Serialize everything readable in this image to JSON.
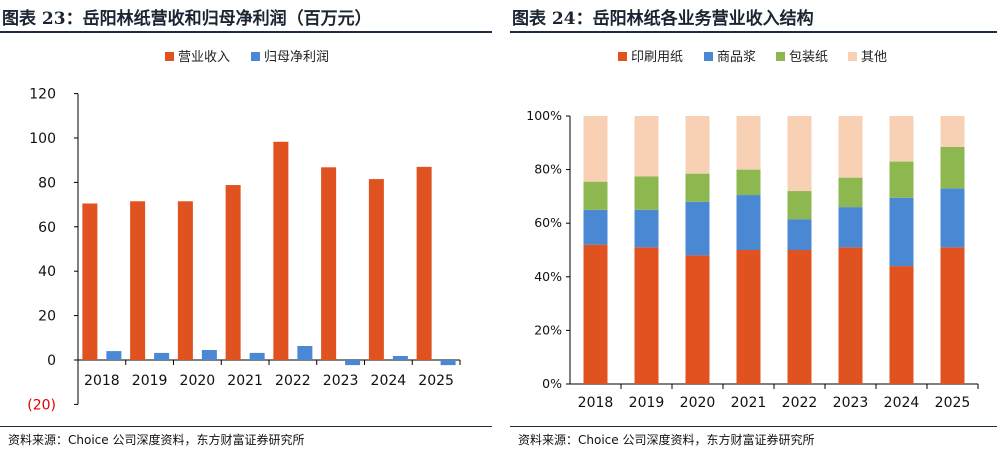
{
  "charts": [
    {
      "figure_title": "图表 23：岳阳林纸营收和归母净利润（百万元）",
      "source": "资料来源：Choice 公司深度资料，东方财富证券研究所"
    },
    {
      "figure_title": "图表 24：岳阳林纸各业务营业收入结构",
      "source": "资料来源：Choice 公司深度资料，东方财富证券研究所"
    }
  ],
  "chart_data": [
    {
      "type": "bar",
      "title": "图表 23：岳阳林纸营收和归母净利润（百万元）",
      "categories": [
        "2018",
        "2019",
        "2020",
        "2021",
        "2022",
        "2023",
        "2024",
        "2025"
      ],
      "series": [
        {
          "name": "营业收入",
          "color": "#e0521f",
          "values": [
            70.5,
            71.5,
            71.5,
            78.8,
            98.3,
            86.8,
            81.5,
            87.0
          ]
        },
        {
          "name": "归母净利润",
          "color": "#4a88d4",
          "values": [
            4.0,
            3.2,
            4.5,
            3.2,
            6.3,
            -2.3,
            1.8,
            -2.3
          ]
        }
      ],
      "ylim": [
        -20,
        120
      ],
      "yticks": [
        -20,
        0,
        20,
        40,
        60,
        80,
        100,
        120
      ],
      "ytick_labels": [
        "(20)",
        "0",
        "20",
        "40",
        "60",
        "80",
        "100",
        "120"
      ],
      "negative_label_color": "#e00000",
      "legend_position": "top",
      "grid": false
    },
    {
      "type": "bar",
      "stacked": "percent",
      "title": "图表 24：岳阳林纸各业务营业收入结构",
      "categories": [
        "2018",
        "2019",
        "2020",
        "2021",
        "2022",
        "2023",
        "2024",
        "2025"
      ],
      "series": [
        {
          "name": "印刷用纸",
          "color": "#e0521f",
          "values": [
            52,
            51,
            48,
            50,
            50,
            51,
            44,
            51
          ]
        },
        {
          "name": "商品浆",
          "color": "#4a88d4",
          "values": [
            13,
            14,
            20,
            20.5,
            11.5,
            15,
            25.5,
            22
          ]
        },
        {
          "name": "包装纸",
          "color": "#8db74f",
          "values": [
            10.5,
            12.5,
            10.5,
            9.5,
            10.5,
            11,
            13.5,
            15.5
          ]
        },
        {
          "name": "其他",
          "color": "#f8d0b4",
          "values": [
            24.5,
            22.5,
            21.5,
            20,
            28,
            23,
            17,
            11.5
          ]
        }
      ],
      "ylim": [
        0,
        100
      ],
      "yticks": [
        0,
        20,
        40,
        60,
        80,
        100
      ],
      "ytick_labels": [
        "0%",
        "20%",
        "40%",
        "60%",
        "80%",
        "100%"
      ],
      "legend_position": "top",
      "grid": false
    }
  ]
}
